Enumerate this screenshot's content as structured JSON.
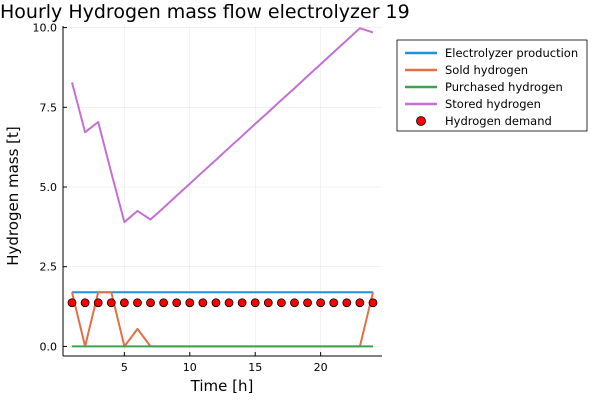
{
  "chart_data": {
    "type": "line",
    "title": "Hourly Hydrogen mass flow electrolyzer 19",
    "xlabel": "Time [h]",
    "ylabel": "Hydrogen mass [t]",
    "xlim": [
      0.31,
      24.69
    ],
    "ylim": [
      -0.3,
      10.05
    ],
    "xticks": [
      5,
      10,
      15,
      20
    ],
    "yticks": [
      0.0,
      2.5,
      5.0,
      7.5,
      10.0
    ],
    "ytick_labels": [
      "0.0",
      "2.5",
      "5.0",
      "7.5",
      "10.0"
    ],
    "grid": true,
    "legend_position": "top-right (outside plot)",
    "x": [
      1,
      2,
      3,
      4,
      5,
      6,
      7,
      8,
      9,
      10,
      11,
      12,
      13,
      14,
      15,
      16,
      17,
      18,
      19,
      20,
      21,
      22,
      23,
      24
    ],
    "series": [
      {
        "name": "Electrolyzer production",
        "style": "line",
        "color": "#1f8fe0",
        "values": [
          1.7,
          1.7,
          1.7,
          1.7,
          1.7,
          1.7,
          1.7,
          1.7,
          1.7,
          1.7,
          1.7,
          1.7,
          1.7,
          1.7,
          1.7,
          1.7,
          1.7,
          1.7,
          1.7,
          1.7,
          1.7,
          1.7,
          1.7,
          1.7
        ]
      },
      {
        "name": "Sold hydrogen",
        "style": "line",
        "color": "#e26f46",
        "values": [
          1.7,
          0.0,
          1.7,
          1.7,
          0.0,
          0.55,
          0.0,
          0.0,
          0.0,
          0.0,
          0.0,
          0.0,
          0.0,
          0.0,
          0.0,
          0.0,
          0.0,
          0.0,
          0.0,
          0.0,
          0.0,
          0.0,
          0.0,
          1.7
        ]
      },
      {
        "name": "Purchased hydrogen",
        "style": "line",
        "color": "#3da44d",
        "values": [
          0,
          0,
          0,
          0,
          0,
          0,
          0,
          0,
          0,
          0,
          0,
          0,
          0,
          0,
          0,
          0,
          0,
          0,
          0,
          0,
          0,
          0,
          0,
          0
        ]
      },
      {
        "name": "Stored hydrogen",
        "style": "line",
        "color": "#c271d2",
        "values": [
          8.28,
          6.72,
          7.04,
          5.45,
          3.9,
          4.25,
          3.98,
          4.35,
          4.73,
          5.1,
          5.48,
          5.85,
          6.23,
          6.6,
          6.98,
          7.35,
          7.73,
          8.1,
          8.48,
          8.85,
          9.23,
          9.6,
          9.98,
          9.85
        ]
      },
      {
        "name": "Hydrogen demand",
        "style": "scatter",
        "color": "#ff0000",
        "values": [
          1.37,
          1.37,
          1.37,
          1.37,
          1.37,
          1.37,
          1.37,
          1.37,
          1.37,
          1.37,
          1.37,
          1.37,
          1.37,
          1.37,
          1.37,
          1.37,
          1.37,
          1.37,
          1.37,
          1.37,
          1.37,
          1.37,
          1.37,
          1.37
        ]
      }
    ]
  }
}
